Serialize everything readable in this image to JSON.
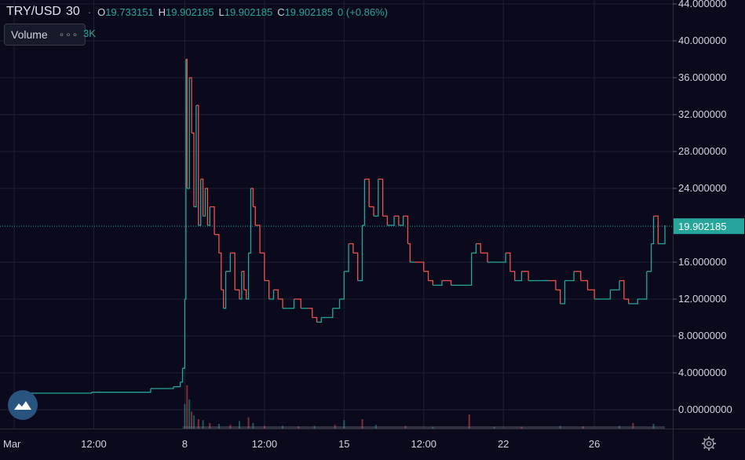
{
  "header": {
    "symbol": "TRY/USD",
    "interval": "30",
    "o_label": "O",
    "o_value": "19.733151",
    "h_label": "H",
    "h_value": "19.902185",
    "l_label": "L",
    "l_value": "19.902185",
    "c_label": "C",
    "c_value": "19.902185",
    "change": "0 (+0.86%)"
  },
  "volume": {
    "label": "Volume",
    "more": "∘∘∘",
    "value": "3K"
  },
  "colors": {
    "background": "#0b0a1d",
    "grid": "#1e2232",
    "up": "#26a69a",
    "down": "#ef5350",
    "price_line": "#26a69a",
    "axis_text": "#d1d4dc"
  },
  "icons": {
    "logo": "tradingview-cloud-icon",
    "settings": "gear-icon"
  },
  "chart_data": {
    "type": "line",
    "title": "TRY/USD",
    "ylim": [
      -2,
      44
    ],
    "yticks": [
      {
        "value": 44,
        "label": "44.000000"
      },
      {
        "value": 40,
        "label": "40.000000"
      },
      {
        "value": 36,
        "label": "36.000000"
      },
      {
        "value": 32,
        "label": "32.000000"
      },
      {
        "value": 28,
        "label": "28.000000"
      },
      {
        "value": 24,
        "label": "24.000000"
      },
      {
        "value": 16,
        "label": "16.000000"
      },
      {
        "value": 12,
        "label": "12.000000"
      },
      {
        "value": 8,
        "label": "8.0000000"
      },
      {
        "value": 4,
        "label": "4.0000000"
      },
      {
        "value": 0,
        "label": "0.00000000"
      }
    ],
    "last_price": {
      "value": 19.902185,
      "label": "19.902185"
    },
    "xrange": [
      0,
      30
    ],
    "xticks": [
      {
        "t": 0.0,
        "label": "Mar"
      },
      {
        "t": 3.5,
        "label": "12:00"
      },
      {
        "t": 7.5,
        "label": "8"
      },
      {
        "t": 11.0,
        "label": "12:00"
      },
      {
        "t": 14.5,
        "label": "15"
      },
      {
        "t": 18.0,
        "label": "12:00"
      },
      {
        "t": 21.5,
        "label": "22"
      },
      {
        "t": 25.5,
        "label": "26"
      }
    ],
    "series": [
      {
        "points": [
          [
            0,
            1.8
          ],
          [
            3.3,
            1.8
          ],
          [
            3.4,
            1.9
          ],
          [
            5.8,
            1.9
          ],
          [
            6.0,
            2.3
          ],
          [
            6.6,
            2.3
          ],
          [
            7.0,
            2.5
          ],
          [
            7.3,
            3.0
          ],
          [
            7.4,
            4.5
          ],
          [
            7.5,
            12
          ],
          [
            7.55,
            38
          ],
          [
            7.6,
            24
          ],
          [
            7.7,
            36
          ],
          [
            7.8,
            30
          ],
          [
            7.9,
            22
          ],
          [
            8.0,
            33
          ],
          [
            8.1,
            20
          ],
          [
            8.2,
            25
          ],
          [
            8.3,
            21
          ],
          [
            8.4,
            24
          ],
          [
            8.5,
            20
          ],
          [
            8.6,
            22
          ],
          [
            8.8,
            19
          ],
          [
            9.0,
            17
          ],
          [
            9.1,
            13
          ],
          [
            9.2,
            11
          ],
          [
            9.3,
            15
          ],
          [
            9.5,
            17
          ],
          [
            9.7,
            13
          ],
          [
            9.9,
            12
          ],
          [
            10.0,
            15
          ],
          [
            10.1,
            13
          ],
          [
            10.2,
            12
          ],
          [
            10.3,
            17
          ],
          [
            10.4,
            24
          ],
          [
            10.5,
            22
          ],
          [
            10.6,
            20
          ],
          [
            10.8,
            17
          ],
          [
            11.0,
            14
          ],
          [
            11.2,
            12
          ],
          [
            11.4,
            13
          ],
          [
            11.6,
            12
          ],
          [
            11.8,
            11
          ],
          [
            12.0,
            11
          ],
          [
            12.3,
            12
          ],
          [
            12.6,
            11
          ],
          [
            12.9,
            11
          ],
          [
            13.1,
            10
          ],
          [
            13.3,
            9.5
          ],
          [
            13.5,
            10
          ],
          [
            13.7,
            10
          ],
          [
            14.0,
            11
          ],
          [
            14.3,
            12
          ],
          [
            14.5,
            15
          ],
          [
            14.7,
            18
          ],
          [
            14.9,
            17
          ],
          [
            15.1,
            14
          ],
          [
            15.3,
            20
          ],
          [
            15.4,
            25
          ],
          [
            15.6,
            22
          ],
          [
            15.8,
            21
          ],
          [
            16.0,
            25
          ],
          [
            16.2,
            21
          ],
          [
            16.4,
            20
          ],
          [
            16.7,
            21
          ],
          [
            16.9,
            20
          ],
          [
            17.1,
            21
          ],
          [
            17.3,
            18
          ],
          [
            17.4,
            16
          ],
          [
            17.6,
            16
          ],
          [
            18.0,
            15
          ],
          [
            18.2,
            14
          ],
          [
            18.4,
            13.5
          ],
          [
            18.8,
            14
          ],
          [
            19.2,
            13.5
          ],
          [
            19.6,
            13.5
          ],
          [
            20.0,
            13.5
          ],
          [
            20.1,
            17
          ],
          [
            20.3,
            18
          ],
          [
            20.5,
            17
          ],
          [
            20.8,
            16
          ],
          [
            21.0,
            16
          ],
          [
            21.4,
            16
          ],
          [
            21.6,
            17
          ],
          [
            21.8,
            15
          ],
          [
            22.0,
            14
          ],
          [
            22.3,
            15
          ],
          [
            22.6,
            14
          ],
          [
            22.9,
            14
          ],
          [
            23.2,
            14
          ],
          [
            23.5,
            14
          ],
          [
            23.8,
            13
          ],
          [
            24.0,
            11.5
          ],
          [
            24.2,
            14
          ],
          [
            24.6,
            15
          ],
          [
            24.9,
            14
          ],
          [
            25.2,
            13
          ],
          [
            25.5,
            12
          ],
          [
            25.8,
            12
          ],
          [
            26.2,
            13
          ],
          [
            26.6,
            14
          ],
          [
            26.8,
            12
          ],
          [
            27.0,
            11.5
          ],
          [
            27.4,
            12
          ],
          [
            27.8,
            15
          ],
          [
            28.0,
            18
          ],
          [
            28.1,
            21
          ],
          [
            28.3,
            18
          ],
          [
            28.6,
            20
          ]
        ]
      }
    ],
    "volume_bars": [
      [
        7.5,
        2.6
      ],
      [
        7.6,
        4.6
      ],
      [
        7.7,
        3.1
      ],
      [
        7.8,
        1.8
      ],
      [
        7.9,
        1.4
      ],
      [
        8.1,
        1.0
      ],
      [
        8.3,
        0.9
      ],
      [
        8.6,
        0.6
      ],
      [
        9.0,
        0.5
      ],
      [
        9.5,
        0.4
      ],
      [
        9.9,
        0.8
      ],
      [
        10.3,
        1.2
      ],
      [
        10.5,
        0.6
      ],
      [
        11.0,
        0.3
      ],
      [
        11.8,
        0.3
      ],
      [
        12.5,
        0.25
      ],
      [
        13.2,
        0.3
      ],
      [
        14.1,
        0.4
      ],
      [
        14.5,
        0.9
      ],
      [
        15.3,
        1.0
      ],
      [
        15.9,
        0.4
      ],
      [
        17.2,
        0.3
      ],
      [
        18.4,
        0.2
      ],
      [
        20.0,
        1.5
      ],
      [
        21.1,
        0.2
      ],
      [
        22.3,
        0.2
      ],
      [
        24.0,
        0.3
      ],
      [
        25.0,
        0.25
      ],
      [
        26.6,
        0.3
      ],
      [
        27.2,
        0.6
      ],
      [
        28.1,
        0.5
      ]
    ]
  }
}
